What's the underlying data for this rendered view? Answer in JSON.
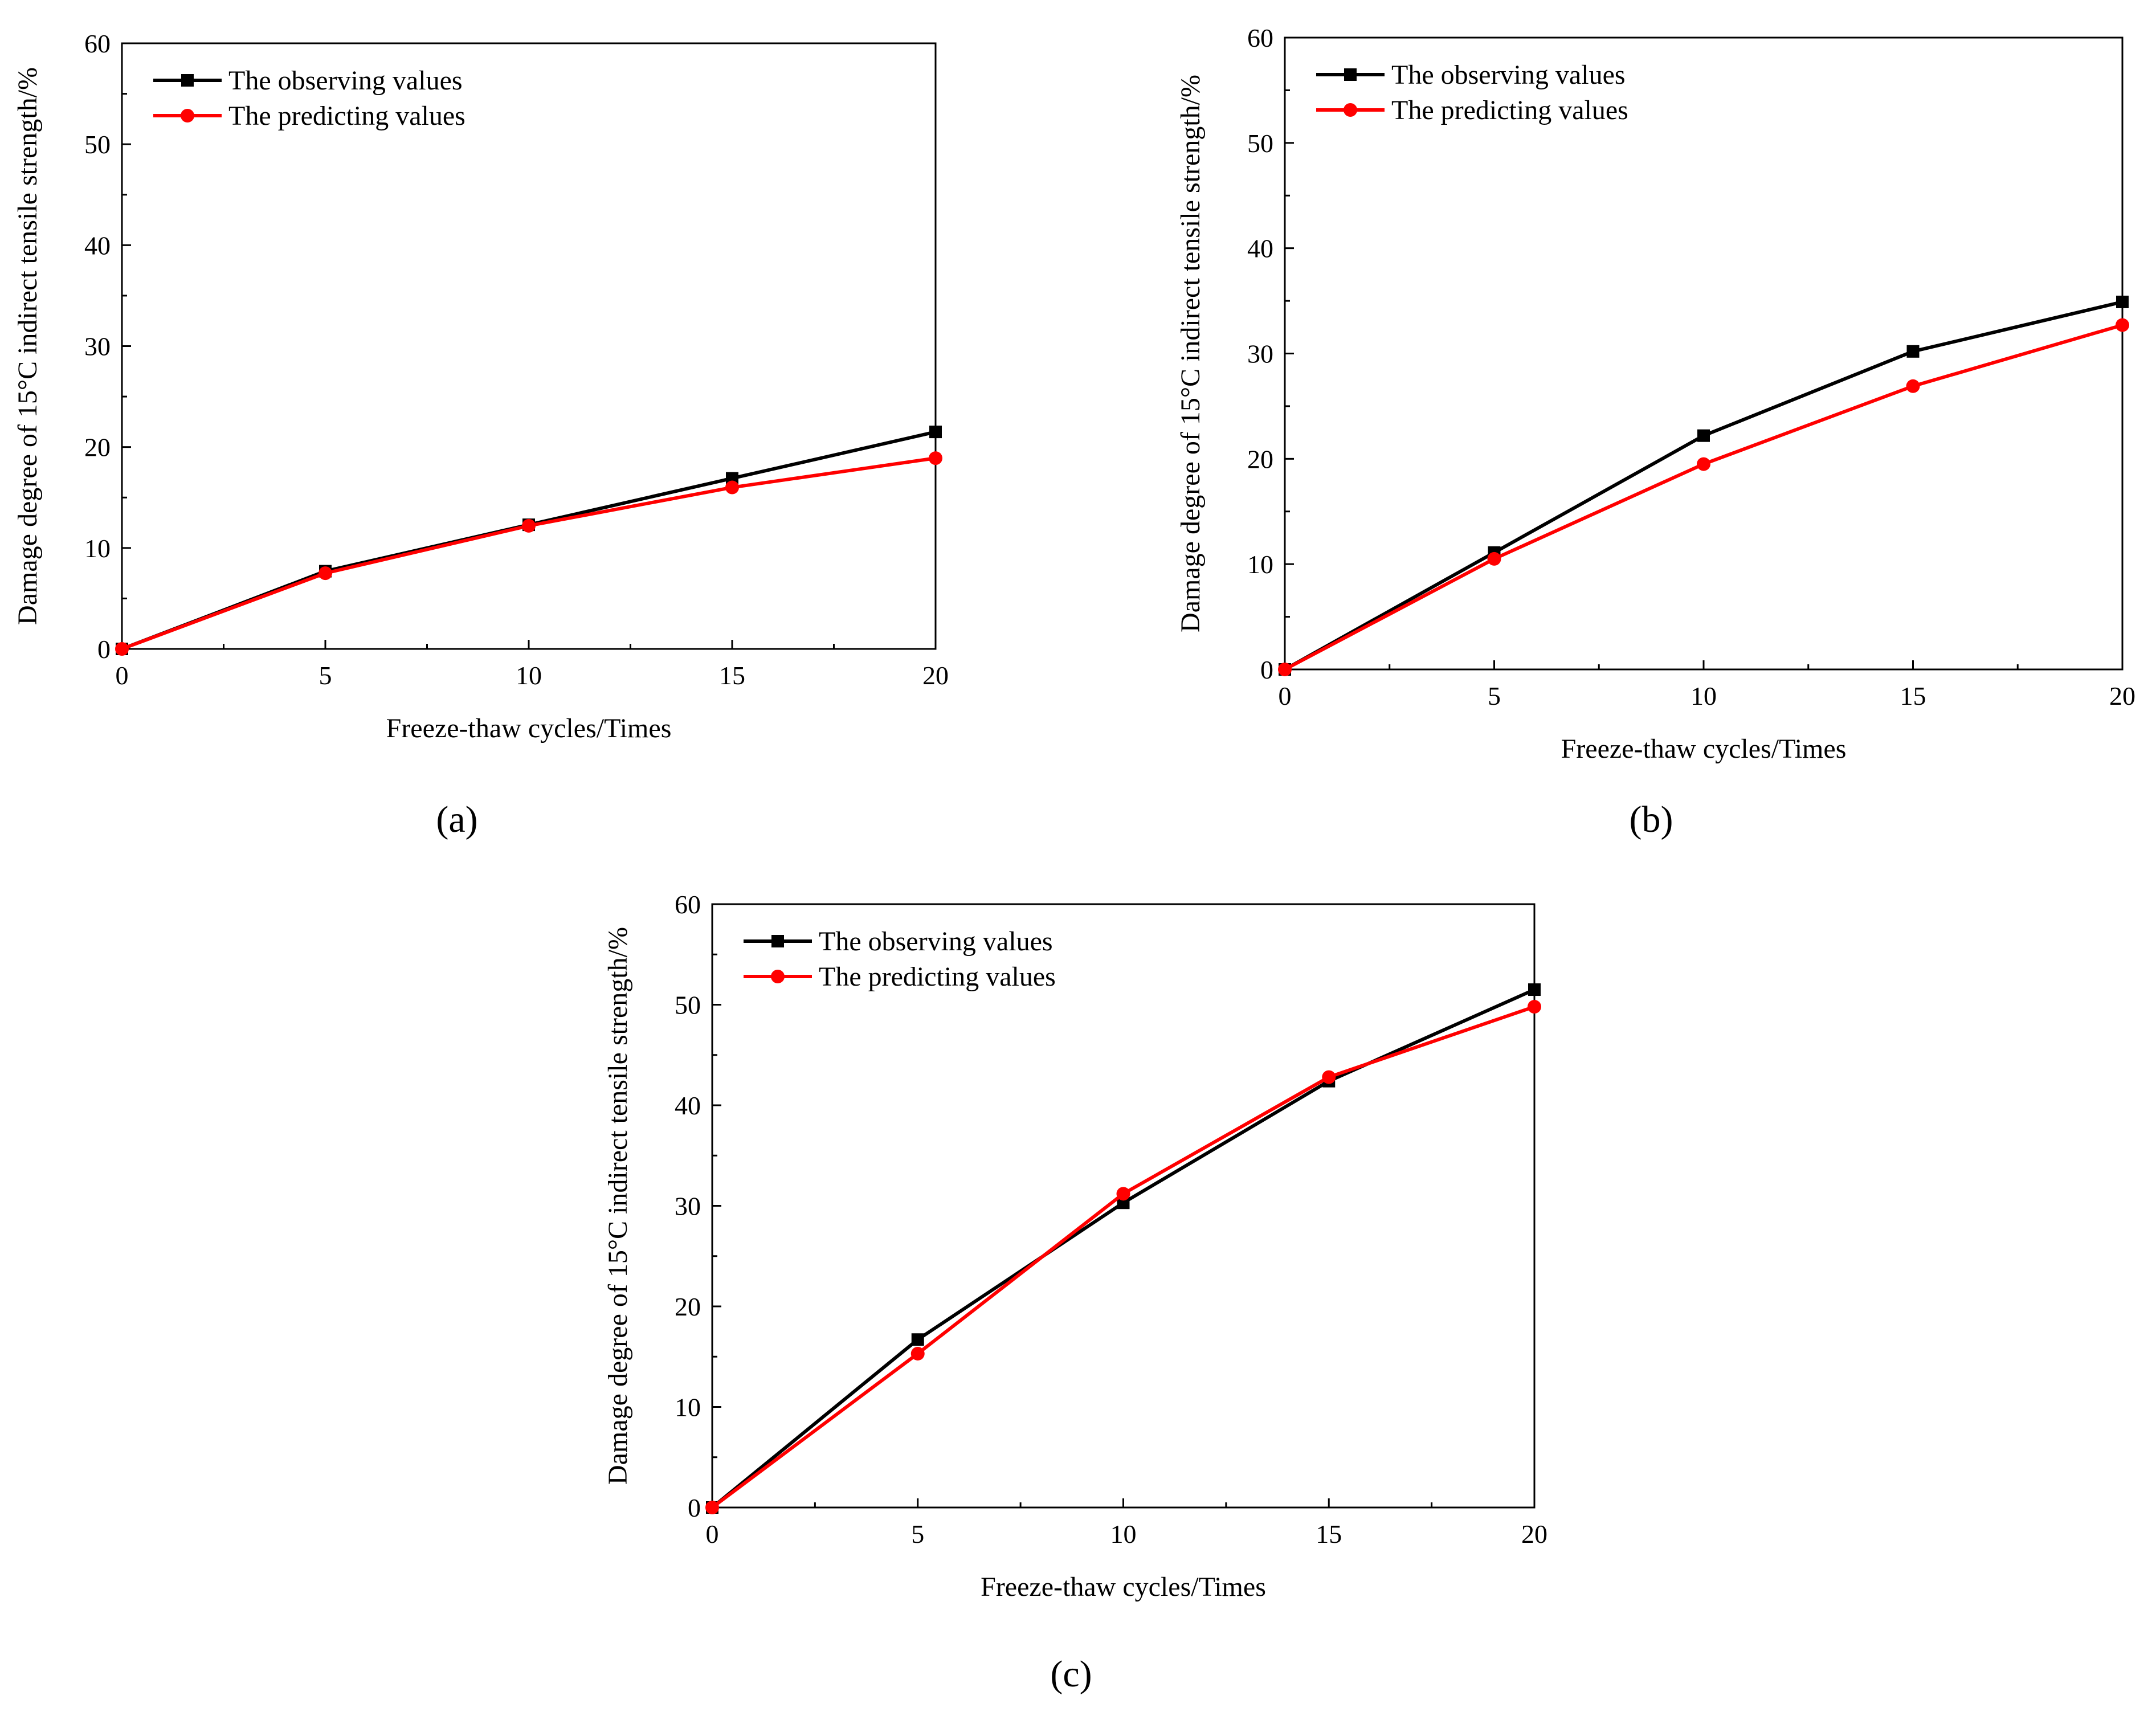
{
  "figure": {
    "panel_labels": [
      "(a)",
      "(b)",
      "(c)"
    ]
  },
  "chart_data": [
    {
      "panel": "a",
      "type": "line",
      "xlabel": "Freeze-thaw cycles/Times",
      "ylabel": "Damage degree of 15°C indirect tensile strength/%",
      "x": [
        0,
        5,
        10,
        15,
        20
      ],
      "xlim": [
        0,
        20
      ],
      "ylim": [
        0,
        60
      ],
      "xticks": [
        0,
        5,
        10,
        15,
        20
      ],
      "yticks": [
        0,
        10,
        20,
        30,
        40,
        50,
        60
      ],
      "legend_position": "top-left",
      "series": [
        {
          "name": "The observing values",
          "color": "#000000",
          "marker": "square",
          "values": [
            0,
            7.7,
            12.3,
            16.9,
            21.5
          ]
        },
        {
          "name": "The predicting values",
          "color": "#ff0000",
          "marker": "circle",
          "values": [
            0,
            7.5,
            12.2,
            16.0,
            18.9
          ]
        }
      ]
    },
    {
      "panel": "b",
      "type": "line",
      "xlabel": "Freeze-thaw cycles/Times",
      "ylabel": "Damage degree of 15°C indirect tensile strength/%",
      "x": [
        0,
        5,
        10,
        15,
        20
      ],
      "xlim": [
        0,
        20
      ],
      "ylim": [
        0,
        60
      ],
      "xticks": [
        0,
        5,
        10,
        15,
        20
      ],
      "yticks": [
        0,
        10,
        20,
        30,
        40,
        50,
        60
      ],
      "legend_position": "top-left",
      "series": [
        {
          "name": "The observing values",
          "color": "#000000",
          "marker": "square",
          "values": [
            0,
            11.1,
            22.2,
            30.2,
            34.9
          ]
        },
        {
          "name": "The predicting values",
          "color": "#ff0000",
          "marker": "circle",
          "values": [
            0,
            10.5,
            19.5,
            26.9,
            32.7
          ]
        }
      ]
    },
    {
      "panel": "c",
      "type": "line",
      "xlabel": "Freeze-thaw cycles/Times",
      "ylabel": "Damage degree of 15°C indirect tensile strength/%",
      "x": [
        0,
        5,
        10,
        15,
        20
      ],
      "xlim": [
        0,
        20
      ],
      "ylim": [
        0,
        60
      ],
      "xticks": [
        0,
        5,
        10,
        15,
        20
      ],
      "yticks": [
        0,
        10,
        20,
        30,
        40,
        50,
        60
      ],
      "legend_position": "top-left",
      "series": [
        {
          "name": "The observing values",
          "color": "#000000",
          "marker": "square",
          "values": [
            0,
            16.7,
            30.3,
            42.4,
            51.5
          ]
        },
        {
          "name": "The predicting values",
          "color": "#ff0000",
          "marker": "circle",
          "values": [
            0,
            15.3,
            31.2,
            42.8,
            49.8
          ]
        }
      ]
    }
  ]
}
